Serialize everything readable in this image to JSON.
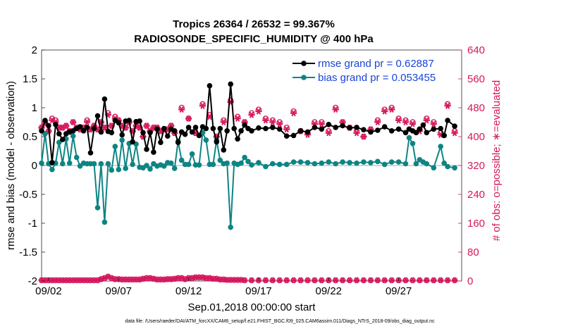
{
  "chart_data": {
    "type": "line",
    "title": "Tropics 26364 / 26532 = 99.367%",
    "subtitle": "RADIOSONDE_SPECIFIC_HUMIDITY @ 400 hPa",
    "xlabel": "Sep.01,2018 00:00:00 start",
    "ylabel": "rmse and bias (model - observation)",
    "y2label": "# of obs: o=possible; ∗=evaluated",
    "footnote": "data file: /Users/raeder/DAI/ATM_forcXX/CAM6_setup/f.e21.FHIST_BGC.f09_025.CAM6assim.011/Diags_NTrS_2018-09/obs_diag_output.nc",
    "x_unit": "days since Sep.01,2018",
    "xlim": [
      0.5,
      30.5
    ],
    "ylim": [
      -2,
      2
    ],
    "y2lim": [
      0,
      640
    ],
    "xticks": [
      1,
      6,
      11,
      16,
      21,
      26
    ],
    "xtick_labels": [
      "09/02",
      "09/07",
      "09/12",
      "09/17",
      "09/22",
      "09/27"
    ],
    "yticks": [
      -2,
      -1.5,
      -1,
      -0.5,
      0,
      0.5,
      1,
      1.5,
      2
    ],
    "ytick_labels": [
      "-2",
      "-1.5",
      "-1",
      "-0.5",
      "0",
      "0.5",
      "1",
      "1.5",
      "2"
    ],
    "y2ticks": [
      0,
      80,
      160,
      240,
      320,
      400,
      480,
      560,
      640
    ],
    "y2tick_labels": [
      "0",
      "80",
      "160",
      "240",
      "320",
      "400",
      "480",
      "560",
      "640"
    ],
    "colors": {
      "rmse": "#000000",
      "bias": "#0e8484",
      "obs": "#d6175c",
      "legend_text": "#1a44d6",
      "zero_line": "#aaaaaa"
    },
    "legend": {
      "position": "top-right"
    },
    "series": [
      {
        "name": "rmse grand pr = 0.62887",
        "axis": "left",
        "x": [
          0.5,
          0.75,
          1.0,
          1.25,
          1.5,
          1.75,
          2.0,
          2.25,
          2.5,
          2.75,
          3.0,
          3.25,
          3.5,
          3.75,
          4.0,
          4.25,
          4.5,
          4.75,
          5.0,
          5.25,
          5.5,
          5.75,
          6.0,
          6.25,
          6.5,
          6.75,
          7.0,
          7.25,
          7.5,
          7.75,
          8.0,
          8.25,
          8.5,
          8.75,
          9.0,
          9.25,
          9.5,
          9.75,
          10.0,
          10.25,
          10.5,
          10.75,
          11.0,
          11.25,
          11.5,
          11.75,
          12.0,
          12.25,
          12.5,
          12.75,
          13.0,
          13.25,
          13.5,
          13.75,
          14.0,
          14.25,
          14.5,
          14.75,
          15.0,
          15.25,
          15.5,
          16.0,
          16.5,
          17.0,
          17.5,
          18.0,
          18.5,
          19.0,
          19.5,
          20.0,
          20.5,
          21.0,
          21.5,
          22.0,
          22.5,
          23.0,
          23.5,
          24.0,
          24.5,
          25.0,
          25.5,
          26.0,
          26.5,
          26.75,
          27.0,
          27.25,
          27.5,
          27.75,
          28.0,
          28.5,
          29.0,
          29.25,
          29.5,
          30.0
        ],
        "values": [
          0.6,
          0.78,
          0.69,
          0.05,
          0.71,
          0.55,
          0.45,
          0.55,
          0.58,
          0.6,
          0.64,
          0.67,
          0.6,
          0.66,
          0.22,
          0.64,
          0.86,
          0.58,
          1.15,
          0.59,
          0.57,
          0.78,
          0.74,
          0.53,
          0.77,
          0.78,
          0.41,
          0.76,
          0.77,
          0.57,
          0.28,
          0.57,
          0.23,
          0.63,
          0.4,
          0.64,
          0.51,
          0.63,
          0.6,
          0.4,
          0.58,
          0.54,
          0.66,
          0.58,
          0.66,
          0.52,
          0.67,
          0.64,
          1.38,
          0.64,
          0.41,
          0.64,
          0.27,
          0.6,
          1.41,
          0.64,
          0.46,
          0.6,
          0.7,
          0.64,
          0.6,
          0.65,
          0.64,
          0.66,
          0.63,
          0.51,
          0.52,
          0.6,
          0.58,
          0.66,
          0.63,
          0.71,
          0.66,
          0.69,
          0.65,
          0.66,
          0.62,
          0.58,
          0.61,
          0.67,
          0.6,
          0.63,
          0.57,
          0.63,
          0.6,
          0.57,
          0.63,
          0.7,
          0.57,
          0.63,
          0.64,
          0.52,
          0.78,
          0.68
        ]
      },
      {
        "name": "bias grand pr = 0.053455",
        "axis": "left",
        "x": [
          0.5,
          0.75,
          1.0,
          1.25,
          1.5,
          1.75,
          2.0,
          2.25,
          2.5,
          2.75,
          3.0,
          3.25,
          3.5,
          3.75,
          4.0,
          4.25,
          4.5,
          4.75,
          5.0,
          5.25,
          5.5,
          5.75,
          6.0,
          6.25,
          6.5,
          6.75,
          7.0,
          7.25,
          7.5,
          7.75,
          8.0,
          8.25,
          8.5,
          8.75,
          9.0,
          9.25,
          9.5,
          9.75,
          10.0,
          10.25,
          10.5,
          10.75,
          11.0,
          11.25,
          11.5,
          11.75,
          12.0,
          12.25,
          12.5,
          12.75,
          13.0,
          13.25,
          13.5,
          13.75,
          14.0,
          14.25,
          14.5,
          14.75,
          15.0,
          15.25,
          15.5,
          16.0,
          16.5,
          17.0,
          17.5,
          18.0,
          18.5,
          19.0,
          19.5,
          20.0,
          20.5,
          21.0,
          21.5,
          22.0,
          22.5,
          23.0,
          23.5,
          24.0,
          24.5,
          25.0,
          25.5,
          26.0,
          26.5,
          26.75,
          27.0,
          27.25,
          27.5,
          27.75,
          28.0,
          28.5,
          29.0,
          29.25,
          29.5,
          30.0
        ],
        "values": [
          0.04,
          0.55,
          0.03,
          -0.07,
          0.04,
          0.4,
          0.03,
          0.46,
          0.04,
          0.51,
          0.14,
          -0.01,
          0.04,
          0.03,
          0.03,
          0.03,
          -0.73,
          0.03,
          -0.98,
          0.03,
          -0.08,
          0.33,
          -0.07,
          0.44,
          -0.05,
          0.38,
          0.02,
          0.37,
          -0.03,
          -0.04,
          0.0,
          -0.06,
          0.03,
          -0.01,
          0.01,
          -0.01,
          0.05,
          0.04,
          -0.05,
          0.42,
          0.09,
          0.02,
          0.02,
          0.2,
          0.01,
          0.01,
          0.57,
          0.44,
          0.02,
          0.02,
          0.44,
          0.09,
          0.03,
          0.04,
          -1.07,
          0.04,
          0.02,
          0.04,
          0.14,
          0.07,
          0.01,
          0.05,
          -0.02,
          0.03,
          0.02,
          0.02,
          0.06,
          0.06,
          0.05,
          0.03,
          0.04,
          0.06,
          0.03,
          0.06,
          0.05,
          0.04,
          0.06,
          0.05,
          0.07,
          0.02,
          0.06,
          0.06,
          0.03,
          0.48,
          0.38,
          0.03,
          0.1,
          0.06,
          0.03,
          -0.04,
          0.33,
          0.04,
          -0.02,
          -0.04
        ]
      },
      {
        "name": "obs possible",
        "axis": "right",
        "marker": "circle-open",
        "x": [
          0.5,
          0.75,
          1.0,
          1.25,
          1.5,
          1.75,
          2.0,
          2.25,
          2.5,
          2.75,
          3.0,
          3.25,
          3.5,
          3.75,
          4.0,
          4.25,
          4.5,
          4.75,
          5.0,
          5.25,
          5.5,
          5.75,
          6.0,
          6.25,
          6.5,
          6.75,
          7.0,
          7.25,
          7.5,
          7.75,
          8.0,
          8.25,
          8.5,
          8.75,
          9.0,
          9.25,
          9.5,
          9.75,
          10.0,
          10.5,
          11.0,
          11.5,
          12.0,
          12.5,
          13.0,
          13.5,
          14.0,
          14.5,
          15.0,
          15.5,
          16.0,
          16.5,
          17.0,
          17.5,
          18.0,
          18.5,
          19.0,
          19.5,
          20.0,
          20.5,
          21.0,
          21.5,
          22.0,
          22.5,
          23.0,
          23.5,
          24.0,
          24.5,
          25.0,
          25.5,
          26.0,
          26.5,
          27.0,
          27.5,
          28.0,
          28.5,
          29.0,
          29.5,
          30.0
        ],
        "values": [
          425,
          440,
          415,
          450,
          445,
          425,
          425,
          430,
          415,
          440,
          425,
          420,
          425,
          445,
          420,
          430,
          420,
          440,
          425,
          465,
          430,
          455,
          445,
          430,
          425,
          440,
          415,
          430,
          425,
          400,
          430,
          415,
          425,
          425,
          415,
          420,
          420,
          430,
          410,
          480,
          450,
          410,
          490,
          460,
          400,
          445,
          500,
          455,
          440,
          465,
          475,
          450,
          445,
          440,
          425,
          470,
          415,
          410,
          440,
          440,
          415,
          480,
          440,
          425,
          415,
          400,
          420,
          445,
          475,
          480,
          450,
          445,
          440,
          420,
          450,
          440,
          410,
          490,
          415
        ]
      },
      {
        "name": "obs evaluated",
        "axis": "right",
        "marker": "star",
        "x": [
          0.5,
          0.75,
          1.0,
          1.25,
          1.5,
          1.75,
          2.0,
          2.25,
          2.5,
          2.75,
          3.0,
          3.25,
          3.5,
          3.75,
          4.0,
          4.25,
          4.5,
          4.75,
          5.0,
          5.25,
          5.5,
          5.75,
          6.0,
          6.25,
          6.5,
          6.75,
          7.0,
          7.25,
          7.5,
          7.75,
          8.0,
          8.25,
          8.5,
          8.75,
          9.0,
          9.25,
          9.5,
          9.75,
          10.0,
          10.5,
          11.0,
          11.5,
          12.0,
          12.5,
          13.0,
          13.5,
          14.0,
          14.5,
          15.0,
          15.5,
          16.0,
          16.5,
          17.0,
          17.5,
          18.0,
          18.5,
          19.0,
          19.5,
          20.0,
          20.5,
          21.0,
          21.5,
          22.0,
          22.5,
          23.0,
          23.5,
          24.0,
          24.5,
          25.0,
          25.5,
          26.0,
          26.5,
          27.0,
          27.5,
          28.0,
          28.5,
          29.0,
          29.5,
          30.0
        ],
        "values": [
          425,
          435,
          415,
          445,
          440,
          425,
          425,
          430,
          415,
          440,
          425,
          420,
          425,
          440,
          420,
          430,
          420,
          440,
          425,
          460,
          430,
          450,
          445,
          430,
          425,
          440,
          415,
          430,
          425,
          400,
          430,
          415,
          425,
          425,
          415,
          420,
          420,
          430,
          410,
          475,
          450,
          410,
          485,
          455,
          400,
          440,
          495,
          450,
          440,
          460,
          470,
          445,
          440,
          435,
          420,
          465,
          415,
          405,
          435,
          435,
          410,
          475,
          440,
          425,
          410,
          400,
          420,
          440,
          470,
          475,
          445,
          440,
          435,
          415,
          445,
          435,
          405,
          485,
          410
        ]
      },
      {
        "name": "obs possible (lower)",
        "axis": "right",
        "marker": "circle-open",
        "x": [
          0.5,
          0.75,
          1.0,
          1.25,
          1.5,
          1.75,
          2.0,
          2.25,
          2.5,
          2.75,
          3.0,
          3.25,
          3.5,
          3.75,
          4.0,
          4.25,
          4.5,
          4.75,
          5.0,
          5.25,
          5.5,
          5.75,
          6.0,
          6.25,
          6.5,
          6.75,
          7.0,
          7.25,
          7.5,
          7.75,
          8.0,
          8.25,
          8.5,
          8.75,
          9.0,
          9.25,
          9.5,
          9.75,
          10.0,
          10.25,
          10.5,
          10.75,
          11.0,
          11.25,
          11.5,
          11.75,
          12.0,
          12.25,
          12.5,
          12.75,
          13.0,
          13.25,
          13.5,
          13.75,
          14.0,
          14.25,
          14.5,
          14.75,
          15.0,
          15.5,
          16.0,
          16.5,
          17.0,
          17.5,
          18.0,
          18.5,
          19.0,
          19.5,
          20.0,
          20.5,
          21.0,
          21.5,
          22.0,
          22.5,
          23.0,
          23.5,
          24.0,
          24.5,
          25.0,
          25.5,
          26.0,
          26.5,
          27.0,
          27.5,
          28.0,
          28.5,
          29.0,
          29.5,
          30.0
        ],
        "values": [
          2,
          2,
          2,
          2,
          2,
          2,
          2,
          2,
          2,
          2,
          2,
          2,
          2,
          2,
          2,
          2,
          2,
          5,
          8,
          12,
          8,
          5,
          5,
          4,
          4,
          4,
          4,
          4,
          4,
          6,
          8,
          8,
          6,
          4,
          4,
          4,
          5,
          5,
          6,
          8,
          8,
          5,
          8,
          8,
          10,
          10,
          10,
          8,
          8,
          6,
          6,
          4,
          4,
          3,
          3,
          3,
          3,
          3,
          2,
          2,
          2,
          2,
          2,
          2,
          2,
          2,
          2,
          2,
          2,
          2,
          2,
          2,
          2,
          2,
          2,
          2,
          2,
          2,
          2,
          2,
          2,
          2,
          2,
          2,
          2,
          2,
          2,
          2,
          2
        ]
      }
    ]
  }
}
